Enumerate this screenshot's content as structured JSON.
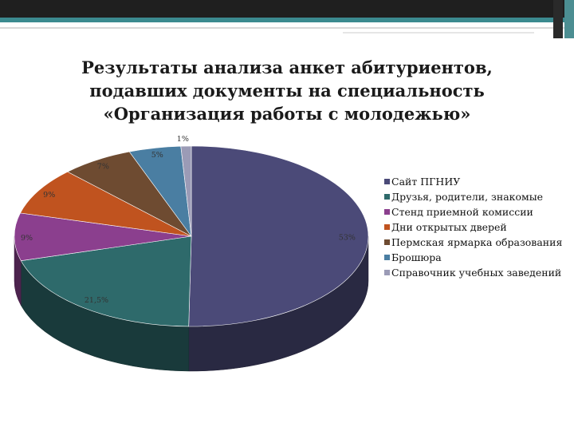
{
  "title_lines": [
    "Результаты анализа анкет абитуриентов,",
    "подавших документы на специальность",
    "«Организация работы с молодежью»"
  ],
  "chart_data": {
    "type": "pie",
    "style": "3d",
    "legend_position": "right",
    "slices": [
      {
        "label": "Сайт ПГНИУ",
        "value": 53,
        "display": "53%",
        "color": "#4b4a78"
      },
      {
        "label": "Друзья, родители, знакомые",
        "value": 21.5,
        "display": "21,5%",
        "color": "#2e6a6b"
      },
      {
        "label": "Стенд приемной комиссии",
        "value": 9,
        "display": "9%",
        "color": "#8b3f8e"
      },
      {
        "label": "Дни открытых дверей",
        "value": 9,
        "display": "9%",
        "color": "#c0531f"
      },
      {
        "label": "Пермская ярмарка образования",
        "value": 7,
        "display": "7%",
        "color": "#6e4b31"
      },
      {
        "label": "Брошюра",
        "value": 5,
        "display": "5%",
        "color": "#4a7ea2"
      },
      {
        "label": "Справочник учебных заведений",
        "value": 1,
        "display": "1%",
        "color": "#9b9bb6"
      }
    ]
  }
}
